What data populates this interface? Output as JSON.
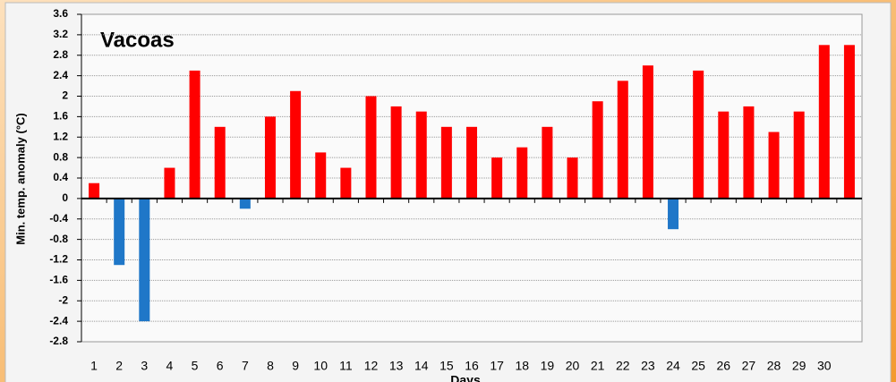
{
  "chart_data": {
    "type": "bar",
    "title": "Vacoas",
    "y_label": "Min. temp. anomaly (°C)",
    "x_label": "Days",
    "categories": [
      "1",
      "2",
      "3",
      "4",
      "5",
      "6",
      "7",
      "8",
      "9",
      "10",
      "11",
      "12",
      "13",
      "14",
      "15",
      "16",
      "17",
      "18",
      "19",
      "20",
      "21",
      "22",
      "23",
      "24",
      "25",
      "26",
      "27",
      "28",
      "29",
      "30",
      null
    ],
    "values": [
      0.3,
      -1.3,
      -2.4,
      0.6,
      2.5,
      1.4,
      -0.2,
      1.6,
      2.1,
      0.9,
      0.6,
      2.0,
      1.8,
      1.7,
      1.4,
      1.4,
      0.8,
      1.0,
      1.4,
      0.8,
      1.9,
      2.3,
      2.6,
      -0.6,
      2.5,
      1.7,
      1.8,
      1.3,
      1.7,
      3.0,
      3.0
    ],
    "color_positive": "#ff0000",
    "color_negative": "#1f77c8",
    "ylim": [
      -2.8,
      3.6
    ],
    "yticks": [
      3.6,
      3.2,
      2.8,
      2.4,
      2,
      1.6,
      1.2,
      0.8,
      0.4,
      0,
      -0.4,
      -0.8,
      -1.2,
      -1.6,
      -2,
      -2.4,
      -2.8
    ],
    "grid": true
  }
}
